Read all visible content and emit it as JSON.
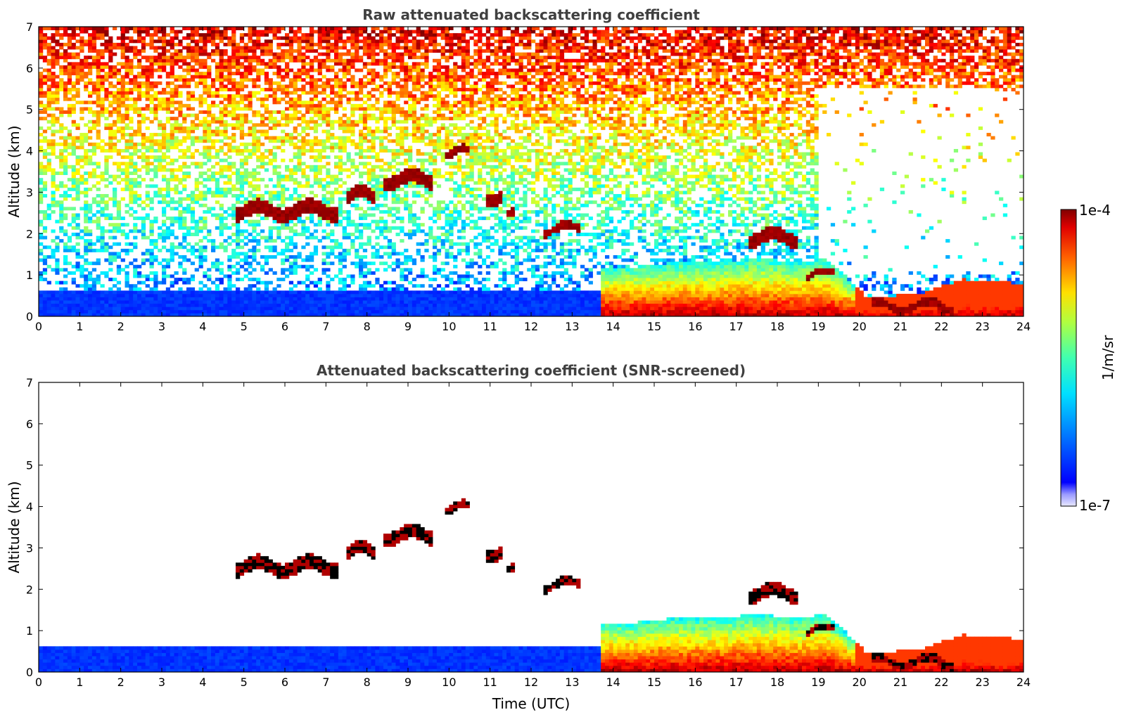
{
  "chart_data": [
    {
      "type": "heatmap",
      "title": "Raw attenuated backscattering coefficient",
      "xlabel": "",
      "ylabel": "Altitude (km)",
      "xlim": [
        0,
        24
      ],
      "ylim": [
        0,
        7
      ],
      "xticks": [
        "0",
        "1",
        "2",
        "3",
        "4",
        "5",
        "6",
        "7",
        "8",
        "9",
        "10",
        "11",
        "12",
        "13",
        "14",
        "15",
        "16",
        "17",
        "18",
        "19",
        "20",
        "21",
        "22",
        "23",
        "24"
      ],
      "yticks": [
        "0",
        "1",
        "2",
        "3",
        "4",
        "5",
        "6",
        "7"
      ],
      "screened": false
    },
    {
      "type": "heatmap",
      "title": "Attenuated backscattering coefficient (SNR-screened)",
      "xlabel": "Time (UTC)",
      "ylabel": "Altitude (km)",
      "xlim": [
        0,
        24
      ],
      "ylim": [
        0,
        7
      ],
      "xticks": [
        "0",
        "1",
        "2",
        "3",
        "4",
        "5",
        "6",
        "7",
        "8",
        "9",
        "10",
        "11",
        "12",
        "13",
        "14",
        "15",
        "16",
        "17",
        "18",
        "19",
        "20",
        "21",
        "22",
        "23",
        "24"
      ],
      "yticks": [
        "0",
        "1",
        "2",
        "3",
        "4",
        "5",
        "6",
        "7"
      ],
      "screened": true
    }
  ],
  "colorbar": {
    "max_label": "1e-4",
    "min_label": "1e-7",
    "unit_label": "1/m/sr",
    "colormap": "jet",
    "scale": "log"
  },
  "features": {
    "boundary_layer": [
      [
        13.7,
        0,
        1.2
      ],
      [
        14.5,
        0,
        1.2
      ],
      [
        15.5,
        0,
        1.3
      ],
      [
        16.5,
        0,
        1.3
      ],
      [
        17.5,
        0,
        1.4
      ],
      [
        18.5,
        0,
        1.3
      ],
      [
        19.2,
        0,
        1.4
      ],
      [
        20.2,
        0,
        0.45
      ],
      [
        21.5,
        0,
        0.55
      ],
      [
        22.5,
        0,
        0.9
      ],
      [
        24,
        0,
        0.8
      ]
    ],
    "cloud_layers": [
      {
        "t0": 4.8,
        "t1": 7.3,
        "alt": 2.55,
        "thick": 0.35
      },
      {
        "t0": 7.5,
        "t1": 8.2,
        "alt": 2.9,
        "thick": 0.3
      },
      {
        "t0": 8.4,
        "t1": 9.6,
        "alt": 3.3,
        "thick": 0.35
      },
      {
        "t0": 9.9,
        "t1": 10.5,
        "alt": 3.95,
        "thick": 0.2
      },
      {
        "t0": 10.9,
        "t1": 11.3,
        "alt": 2.9,
        "thick": 0.3
      },
      {
        "t0": 11.4,
        "t1": 11.6,
        "alt": 2.4,
        "thick": 0.2
      },
      {
        "t0": 12.3,
        "t1": 13.2,
        "alt": 2.1,
        "thick": 0.2
      },
      {
        "t0": 17.3,
        "t1": 18.5,
        "alt": 1.9,
        "thick": 0.35
      },
      {
        "t0": 18.7,
        "t1": 19.4,
        "alt": 1.0,
        "thick": 0.15
      },
      {
        "t0": 20.3,
        "t1": 22.3,
        "alt": 0.25,
        "thick": 0.2
      }
    ]
  }
}
